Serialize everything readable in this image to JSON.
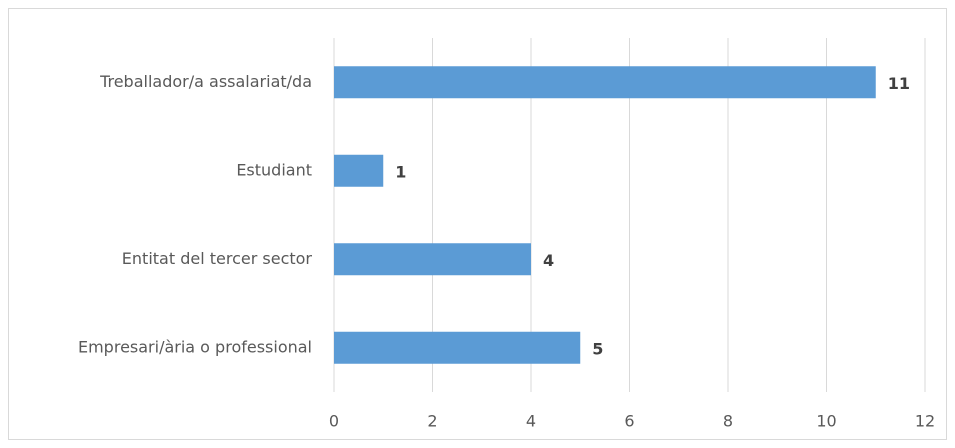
{
  "chart_data": {
    "type": "hbar",
    "categories": [
      "Treballador/a assalariat/da",
      "Estudiant",
      "Entitat del tercer sector",
      "Empresari/ària o professional"
    ],
    "values": [
      11,
      1,
      4,
      5
    ],
    "color": "#5b9bd5",
    "xlim": [
      0,
      12
    ],
    "xticks": [
      0,
      2,
      4,
      6,
      8,
      10,
      12
    ],
    "grid": true
  }
}
